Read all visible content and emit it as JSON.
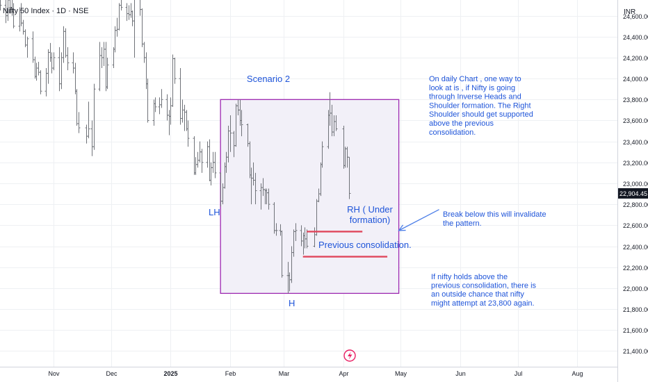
{
  "header": {
    "symbol_title": "Nifty 50 Index · 1D · NSE",
    "currency": "INR"
  },
  "colors": {
    "background": "#ffffff",
    "grid": "#eef0f3",
    "candle": "#6f7278",
    "box_fill": "#f2f0f8",
    "box_stroke": "#9c27b0",
    "annotation_text": "#1e54d9",
    "consolidation_line": "#e0455b",
    "price_badge": "#131722",
    "arrow": "#4d7fe8",
    "event_icon": "#e91e63"
  },
  "chart_data": {
    "type": "candlestick",
    "ylim": [
      21250,
      24750
    ],
    "xlim": [
      "2024-10-04",
      "2025-08-22"
    ],
    "grid": true,
    "yticks": [
      "24,600.00",
      "24,400.00",
      "24,200.00",
      "24,000.00",
      "23,800.00",
      "23,600.00",
      "23,400.00",
      "23,200.00",
      "23,000.00",
      "22,800.00",
      "22,600.00",
      "22,400.00",
      "22,200.00",
      "22,000.00",
      "21,800.00",
      "21,600.00",
      "21,400.00"
    ],
    "ytick_values": [
      24600,
      24400,
      24200,
      24000,
      23800,
      23600,
      23400,
      23200,
      23000,
      22800,
      22600,
      22400,
      22200,
      22000,
      21800,
      21600,
      21400
    ],
    "xticks": [
      {
        "label": "Nov",
        "date": "2024-11-01"
      },
      {
        "label": "Dec",
        "date": "2024-12-01"
      },
      {
        "label": "2025",
        "date": "2025-01-01"
      },
      {
        "label": "Feb",
        "date": "2025-02-01"
      },
      {
        "label": "Mar",
        "date": "2025-03-01"
      },
      {
        "label": "Apr",
        "date": "2025-04-01"
      },
      {
        "label": "May",
        "date": "2025-05-01"
      },
      {
        "label": "Jun",
        "date": "2025-06-01"
      },
      {
        "label": "Jul",
        "date": "2025-07-01"
      },
      {
        "label": "Aug",
        "date": "2025-08-01"
      }
    ],
    "last_price": 22904.45,
    "last_price_label": "22,904.45",
    "ohlc": [
      {
        "date": "2024-10-04",
        "o": 24850,
        "h": 24900,
        "l": 24650,
        "c": 24700
      },
      {
        "date": "2024-10-07",
        "o": 24700,
        "h": 24800,
        "l": 24530,
        "c": 24600
      },
      {
        "date": "2024-10-08",
        "o": 24600,
        "h": 24780,
        "l": 24550,
        "c": 24750
      },
      {
        "date": "2024-10-09",
        "o": 24750,
        "h": 24860,
        "l": 24620,
        "c": 24680
      },
      {
        "date": "2024-10-10",
        "o": 24680,
        "h": 24850,
        "l": 24600,
        "c": 24640
      },
      {
        "date": "2024-10-11",
        "o": 24640,
        "h": 24720,
        "l": 24480,
        "c": 24500
      },
      {
        "date": "2024-10-14",
        "o": 24500,
        "h": 24680,
        "l": 24450,
        "c": 24650
      },
      {
        "date": "2024-10-15",
        "o": 24650,
        "h": 24720,
        "l": 24500,
        "c": 24530
      },
      {
        "date": "2024-10-16",
        "o": 24530,
        "h": 24560,
        "l": 24420,
        "c": 24450
      },
      {
        "date": "2024-10-17",
        "o": 24450,
        "h": 24470,
        "l": 24300,
        "c": 24320
      },
      {
        "date": "2024-10-18",
        "o": 24320,
        "h": 24400,
        "l": 24200,
        "c": 24380
      },
      {
        "date": "2024-10-21",
        "o": 24380,
        "h": 24450,
        "l": 24150,
        "c": 24180
      },
      {
        "date": "2024-10-22",
        "o": 24180,
        "h": 24210,
        "l": 24000,
        "c": 24020
      },
      {
        "date": "2024-10-23",
        "o": 24020,
        "h": 24150,
        "l": 23980,
        "c": 24100
      },
      {
        "date": "2024-10-24",
        "o": 24100,
        "h": 24160,
        "l": 24030,
        "c": 24060
      },
      {
        "date": "2024-10-25",
        "o": 24060,
        "h": 24080,
        "l": 23850,
        "c": 23880
      },
      {
        "date": "2024-10-28",
        "o": 23880,
        "h": 24100,
        "l": 23830,
        "c": 24050
      },
      {
        "date": "2024-10-29",
        "o": 24050,
        "h": 24280,
        "l": 23950,
        "c": 24250
      },
      {
        "date": "2024-10-30",
        "o": 24250,
        "h": 24340,
        "l": 24160,
        "c": 24200
      },
      {
        "date": "2024-10-31",
        "o": 24200,
        "h": 24250,
        "l": 24050,
        "c": 24100
      },
      {
        "date": "2024-11-01",
        "o": 24100,
        "h": 24250,
        "l": 24080,
        "c": 24200
      },
      {
        "date": "2024-11-04",
        "o": 24200,
        "h": 24300,
        "l": 23880,
        "c": 23950
      },
      {
        "date": "2024-11-05",
        "o": 23950,
        "h": 24250,
        "l": 23900,
        "c": 24200
      },
      {
        "date": "2024-11-06",
        "o": 24200,
        "h": 24500,
        "l": 24150,
        "c": 24450
      },
      {
        "date": "2024-11-07",
        "o": 24450,
        "h": 24480,
        "l": 24200,
        "c": 24220
      },
      {
        "date": "2024-11-08",
        "o": 24220,
        "h": 24300,
        "l": 24080,
        "c": 24150
      },
      {
        "date": "2024-11-11",
        "o": 24150,
        "h": 24250,
        "l": 24050,
        "c": 24100
      },
      {
        "date": "2024-11-12",
        "o": 24100,
        "h": 24150,
        "l": 23850,
        "c": 23880
      },
      {
        "date": "2024-11-13",
        "o": 23880,
        "h": 23900,
        "l": 23550,
        "c": 23570
      },
      {
        "date": "2024-11-14",
        "o": 23570,
        "h": 23680,
        "l": 23480,
        "c": 23530
      },
      {
        "date": "2024-11-18",
        "o": 23530,
        "h": 23560,
        "l": 23380,
        "c": 23450
      },
      {
        "date": "2024-11-19",
        "o": 23450,
        "h": 23780,
        "l": 23430,
        "c": 23520
      },
      {
        "date": "2024-11-21",
        "o": 23520,
        "h": 23600,
        "l": 23260,
        "c": 23350
      },
      {
        "date": "2024-11-22",
        "o": 23350,
        "h": 23950,
        "l": 23320,
        "c": 23900
      },
      {
        "date": "2024-11-25",
        "o": 23900,
        "h": 24350,
        "l": 23880,
        "c": 24220
      },
      {
        "date": "2024-11-26",
        "o": 24220,
        "h": 24300,
        "l": 24100,
        "c": 24200
      },
      {
        "date": "2024-11-27",
        "o": 24200,
        "h": 24350,
        "l": 24120,
        "c": 24280
      },
      {
        "date": "2024-11-28",
        "o": 24280,
        "h": 24350,
        "l": 23880,
        "c": 23920
      },
      {
        "date": "2024-11-29",
        "o": 23920,
        "h": 24200,
        "l": 23900,
        "c": 24130
      },
      {
        "date": "2024-12-02",
        "o": 24130,
        "h": 24300,
        "l": 24100,
        "c": 24280
      },
      {
        "date": "2024-12-03",
        "o": 24280,
        "h": 24500,
        "l": 24250,
        "c": 24460
      },
      {
        "date": "2024-12-04",
        "o": 24460,
        "h": 24580,
        "l": 24400,
        "c": 24470
      },
      {
        "date": "2024-12-05",
        "o": 24470,
        "h": 24720,
        "l": 24460,
        "c": 24700
      },
      {
        "date": "2024-12-06",
        "o": 24700,
        "h": 24850,
        "l": 24650,
        "c": 24680
      },
      {
        "date": "2024-12-09",
        "o": 24680,
        "h": 24720,
        "l": 24550,
        "c": 24620
      },
      {
        "date": "2024-12-10",
        "o": 24620,
        "h": 24700,
        "l": 24560,
        "c": 24610
      },
      {
        "date": "2024-12-11",
        "o": 24610,
        "h": 24720,
        "l": 24580,
        "c": 24640
      },
      {
        "date": "2024-12-12",
        "o": 24640,
        "h": 24650,
        "l": 24500,
        "c": 24550
      },
      {
        "date": "2024-12-13",
        "o": 24550,
        "h": 24780,
        "l": 24200,
        "c": 24760
      },
      {
        "date": "2024-12-16",
        "o": 24760,
        "h": 24780,
        "l": 24600,
        "c": 24660
      },
      {
        "date": "2024-12-17",
        "o": 24660,
        "h": 24670,
        "l": 24300,
        "c": 24330
      },
      {
        "date": "2024-12-18",
        "o": 24330,
        "h": 24350,
        "l": 24150,
        "c": 24200
      },
      {
        "date": "2024-12-19",
        "o": 24200,
        "h": 24250,
        "l": 23900,
        "c": 23950
      },
      {
        "date": "2024-12-20",
        "o": 23950,
        "h": 24000,
        "l": 23580,
        "c": 23600
      },
      {
        "date": "2024-12-23",
        "o": 23600,
        "h": 23800,
        "l": 23550,
        "c": 23760
      },
      {
        "date": "2024-12-24",
        "o": 23760,
        "h": 23820,
        "l": 23680,
        "c": 23730
      },
      {
        "date": "2024-12-26",
        "o": 23730,
        "h": 23820,
        "l": 23660,
        "c": 23750
      },
      {
        "date": "2024-12-27",
        "o": 23750,
        "h": 23900,
        "l": 23720,
        "c": 23800
      },
      {
        "date": "2024-12-30",
        "o": 23800,
        "h": 23850,
        "l": 23600,
        "c": 23650
      },
      {
        "date": "2024-12-31",
        "o": 23650,
        "h": 23700,
        "l": 23460,
        "c": 23640
      },
      {
        "date": "2025-01-01",
        "o": 23640,
        "h": 23820,
        "l": 23560,
        "c": 23740
      },
      {
        "date": "2025-01-02",
        "o": 23740,
        "h": 24230,
        "l": 23730,
        "c": 24190
      },
      {
        "date": "2025-01-03",
        "o": 24190,
        "h": 24200,
        "l": 23950,
        "c": 24000
      },
      {
        "date": "2025-01-06",
        "o": 24000,
        "h": 24100,
        "l": 23560,
        "c": 23620
      },
      {
        "date": "2025-01-07",
        "o": 23620,
        "h": 23800,
        "l": 23580,
        "c": 23700
      },
      {
        "date": "2025-01-08",
        "o": 23700,
        "h": 23750,
        "l": 23500,
        "c": 23680
      },
      {
        "date": "2025-01-09",
        "o": 23680,
        "h": 23700,
        "l": 23500,
        "c": 23520
      },
      {
        "date": "2025-01-10",
        "o": 23520,
        "h": 23600,
        "l": 23350,
        "c": 23430
      },
      {
        "date": "2025-01-13",
        "o": 23430,
        "h": 23450,
        "l": 23080,
        "c": 23100
      },
      {
        "date": "2025-01-14",
        "o": 23100,
        "h": 23250,
        "l": 23080,
        "c": 23180
      },
      {
        "date": "2025-01-15",
        "o": 23180,
        "h": 23300,
        "l": 23150,
        "c": 23220
      },
      {
        "date": "2025-01-16",
        "o": 23220,
        "h": 23400,
        "l": 23200,
        "c": 23300
      },
      {
        "date": "2025-01-17",
        "o": 23300,
        "h": 23330,
        "l": 23100,
        "c": 23200
      },
      {
        "date": "2025-01-20",
        "o": 23200,
        "h": 23400,
        "l": 23150,
        "c": 23350
      },
      {
        "date": "2025-01-21",
        "o": 23350,
        "h": 23420,
        "l": 23020,
        "c": 23030
      },
      {
        "date": "2025-01-22",
        "o": 23030,
        "h": 23200,
        "l": 22980,
        "c": 23150
      },
      {
        "date": "2025-01-23",
        "o": 23150,
        "h": 23300,
        "l": 23100,
        "c": 23200
      },
      {
        "date": "2025-01-24",
        "o": 23200,
        "h": 23300,
        "l": 23050,
        "c": 23100
      },
      {
        "date": "2025-01-27",
        "o": 23100,
        "h": 23100,
        "l": 22780,
        "c": 22830
      },
      {
        "date": "2025-01-28",
        "o": 22830,
        "h": 23000,
        "l": 22800,
        "c": 22960
      },
      {
        "date": "2025-01-29",
        "o": 22960,
        "h": 23200,
        "l": 22950,
        "c": 23160
      },
      {
        "date": "2025-01-30",
        "o": 23160,
        "h": 23300,
        "l": 23100,
        "c": 23250
      },
      {
        "date": "2025-01-31",
        "o": 23250,
        "h": 23550,
        "l": 23200,
        "c": 23500
      },
      {
        "date": "2025-02-01",
        "o": 23500,
        "h": 23650,
        "l": 23300,
        "c": 23480
      },
      {
        "date": "2025-02-03",
        "o": 23480,
        "h": 23500,
        "l": 23250,
        "c": 23360
      },
      {
        "date": "2025-02-04",
        "o": 23360,
        "h": 23760,
        "l": 23350,
        "c": 23740
      },
      {
        "date": "2025-02-05",
        "o": 23740,
        "h": 23800,
        "l": 23650,
        "c": 23700
      },
      {
        "date": "2025-02-06",
        "o": 23700,
        "h": 23800,
        "l": 23550,
        "c": 23600
      },
      {
        "date": "2025-02-07",
        "o": 23600,
        "h": 23700,
        "l": 23450,
        "c": 23560
      },
      {
        "date": "2025-02-10",
        "o": 23560,
        "h": 23570,
        "l": 23350,
        "c": 23380
      },
      {
        "date": "2025-02-11",
        "o": 23380,
        "h": 23400,
        "l": 23050,
        "c": 23080
      },
      {
        "date": "2025-02-12",
        "o": 23080,
        "h": 23150,
        "l": 22800,
        "c": 23050
      },
      {
        "date": "2025-02-13",
        "o": 23050,
        "h": 23200,
        "l": 22980,
        "c": 23030
      },
      {
        "date": "2025-02-14",
        "o": 23030,
        "h": 23100,
        "l": 22800,
        "c": 22930
      },
      {
        "date": "2025-02-17",
        "o": 22930,
        "h": 23000,
        "l": 22750,
        "c": 22960
      },
      {
        "date": "2025-02-18",
        "o": 22960,
        "h": 23050,
        "l": 22880,
        "c": 22940
      },
      {
        "date": "2025-02-19",
        "o": 22940,
        "h": 22950,
        "l": 22800,
        "c": 22930
      },
      {
        "date": "2025-02-20",
        "o": 22930,
        "h": 22950,
        "l": 22800,
        "c": 22910
      },
      {
        "date": "2025-02-21",
        "o": 22910,
        "h": 22950,
        "l": 22750,
        "c": 22800
      },
      {
        "date": "2025-02-24",
        "o": 22800,
        "h": 22820,
        "l": 22520,
        "c": 22550
      },
      {
        "date": "2025-02-25",
        "o": 22550,
        "h": 22620,
        "l": 22500,
        "c": 22550
      },
      {
        "date": "2025-02-27",
        "o": 22550,
        "h": 22610,
        "l": 22500,
        "c": 22540
      },
      {
        "date": "2025-02-28",
        "o": 22540,
        "h": 22550,
        "l": 22100,
        "c": 22120
      },
      {
        "date": "2025-03-03",
        "o": 22120,
        "h": 22250,
        "l": 21950,
        "c": 22120
      },
      {
        "date": "2025-03-04",
        "o": 22120,
        "h": 22150,
        "l": 21970,
        "c": 22080
      },
      {
        "date": "2025-03-05",
        "o": 22080,
        "h": 22400,
        "l": 22050,
        "c": 22340
      },
      {
        "date": "2025-03-06",
        "o": 22340,
        "h": 22560,
        "l": 22300,
        "c": 22540
      },
      {
        "date": "2025-03-07",
        "o": 22540,
        "h": 22620,
        "l": 22450,
        "c": 22550
      },
      {
        "date": "2025-03-10",
        "o": 22550,
        "h": 22600,
        "l": 22400,
        "c": 22450
      },
      {
        "date": "2025-03-11",
        "o": 22450,
        "h": 22530,
        "l": 22320,
        "c": 22500
      },
      {
        "date": "2025-03-12",
        "o": 22500,
        "h": 22580,
        "l": 22380,
        "c": 22470
      },
      {
        "date": "2025-03-13",
        "o": 22470,
        "h": 22560,
        "l": 22380,
        "c": 22400
      },
      {
        "date": "2025-03-17",
        "o": 22400,
        "h": 22580,
        "l": 22390,
        "c": 22510
      },
      {
        "date": "2025-03-18",
        "o": 22510,
        "h": 22850,
        "l": 22500,
        "c": 22830
      },
      {
        "date": "2025-03-19",
        "o": 22830,
        "h": 22950,
        "l": 22820,
        "c": 22900
      },
      {
        "date": "2025-03-20",
        "o": 22900,
        "h": 23200,
        "l": 22880,
        "c": 23180
      },
      {
        "date": "2025-03-21",
        "o": 23180,
        "h": 23400,
        "l": 23150,
        "c": 23350
      },
      {
        "date": "2025-03-24",
        "o": 23350,
        "h": 23700,
        "l": 23330,
        "c": 23650
      },
      {
        "date": "2025-03-25",
        "o": 23650,
        "h": 23870,
        "l": 23550,
        "c": 23670
      },
      {
        "date": "2025-03-26",
        "o": 23670,
        "h": 23750,
        "l": 23450,
        "c": 23490
      },
      {
        "date": "2025-03-27",
        "o": 23490,
        "h": 23650,
        "l": 23450,
        "c": 23590
      },
      {
        "date": "2025-03-28",
        "o": 23590,
        "h": 23650,
        "l": 23500,
        "c": 23520
      },
      {
        "date": "2025-04-01",
        "o": 23520,
        "h": 23550,
        "l": 23140,
        "c": 23170
      },
      {
        "date": "2025-04-02",
        "o": 23170,
        "h": 23350,
        "l": 23150,
        "c": 23330
      },
      {
        "date": "2025-04-03",
        "o": 23330,
        "h": 23350,
        "l": 23150,
        "c": 23250
      },
      {
        "date": "2025-04-04",
        "o": 23250,
        "h": 23250,
        "l": 22850,
        "c": 22904
      }
    ]
  },
  "annotations": {
    "scenario": "Scenario 2",
    "daily_note": [
      "On daily Chart , one way to",
      "look at is , if Nifty is going",
      "through Inverse Heads and",
      "Shoulder formation. The Right",
      "Shoulder should get supported",
      "above the previous",
      "consolidation."
    ],
    "lh": "LH",
    "h": "H",
    "rh": [
      "RH ( Under",
      "formation)"
    ],
    "break_note": [
      "Break below this will invalidate",
      "the pattern."
    ],
    "prev_consolidation": "Previous consolidation.",
    "outside_note": [
      "If nifty holds above the",
      "previous consolidation, there is",
      "an outside chance that nifty",
      "might attempt at 23,800 again."
    ]
  },
  "drawings": {
    "box": {
      "date_from": "2025-01-27",
      "date_to": "2025-04-30",
      "price_from": 21950,
      "price_to": 23800
    },
    "line_upper": {
      "date_from": "2025-03-13",
      "date_to": "2025-04-11",
      "price": 22540
    },
    "line_lower": {
      "date_from": "2025-03-11",
      "date_to": "2025-04-24",
      "price": 22300
    },
    "arrow": {
      "from_date": "2025-05-21",
      "from_price": 22750,
      "to_date": "2025-04-30",
      "to_price": 22550
    }
  }
}
